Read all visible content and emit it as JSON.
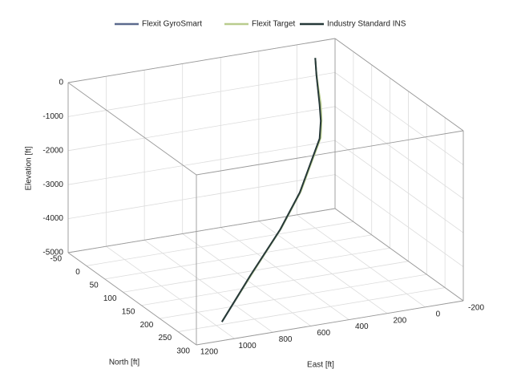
{
  "chart_data": {
    "type": "line3d",
    "xlabel": "East [ft]",
    "ylabel": "North [ft]",
    "zlabel": "Elevation [ft]",
    "xlim": [
      -200,
      1200
    ],
    "ylim": [
      -50,
      300
    ],
    "zlim": [
      -5000,
      0
    ],
    "xticks": [
      1200,
      1000,
      800,
      600,
      400,
      200,
      0,
      -200
    ],
    "yticks": [
      -50,
      0,
      50,
      100,
      150,
      200,
      250,
      300
    ],
    "zticks": [
      0,
      -1000,
      -2000,
      -3000,
      -4000,
      -5000
    ],
    "grid": true,
    "legend": "top",
    "series": [
      {
        "name": "Flexit GyroSmart",
        "color": "#5c6a8e",
        "x": [
          0,
          -10,
          -30,
          -50,
          -60,
          -50,
          50,
          150,
          350,
          650,
          945
        ],
        "y": [
          0,
          -2,
          -8,
          -13,
          -15,
          -13,
          12,
          38,
          89,
          164,
          239
        ],
        "z": [
          0,
          -500,
          -1000,
          -1500,
          -2000,
          -2500,
          -3000,
          -3500,
          -4000,
          -4500,
          -5000
        ]
      },
      {
        "name": "Flexit Target",
        "color": "#b9cc8e",
        "x": [
          0,
          -12,
          -34,
          -56,
          -66,
          -56,
          44,
          144,
          344,
          644,
          940
        ],
        "y": [
          0,
          -3,
          -9,
          -14,
          -17,
          -14,
          11,
          36,
          87,
          162,
          237
        ],
        "z": [
          0,
          -500,
          -1000,
          -1500,
          -2000,
          -2500,
          -3000,
          -3500,
          -4000,
          -4500,
          -5000
        ]
      },
      {
        "name": "Industry Standard INS",
        "color": "#263838",
        "x": [
          0,
          -8,
          -26,
          -44,
          -54,
          -44,
          56,
          158,
          358,
          660,
          955
        ],
        "y": [
          0,
          -1,
          -6,
          -11,
          -13,
          -11,
          14,
          40,
          91,
          166,
          242
        ],
        "z": [
          0,
          -500,
          -1000,
          -1500,
          -2000,
          -2500,
          -3000,
          -3500,
          -4000,
          -4500,
          -5000
        ]
      }
    ]
  }
}
